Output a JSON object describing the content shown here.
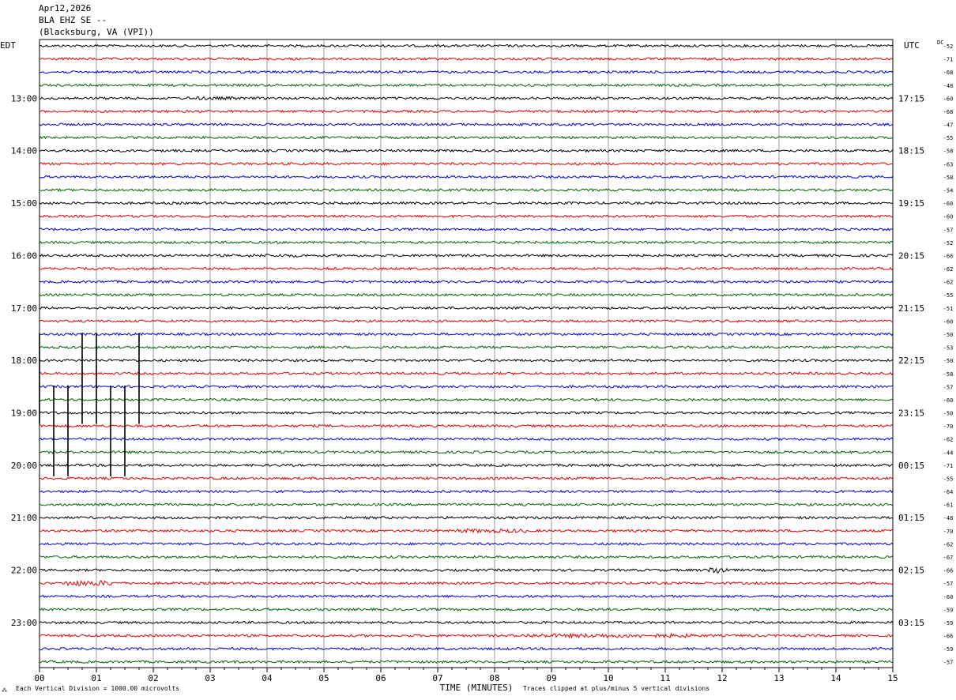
{
  "header": {
    "date": "Apr12,2026",
    "station": "BLA EHZ SE --",
    "location": "(Blacksburg, VA (VPI))"
  },
  "left_timezone": "EDT",
  "right_timezone": "UTC",
  "dc_label": "DC",
  "footer": {
    "xlabel": "TIME (MINUTES)",
    "scale_note": "Each Vertical Division = 1000.00 microvolts",
    "clip_note": "Traces clipped at plus/minus 5 vertical divisions",
    "corner_mark": "⁂"
  },
  "colors": {
    "trace_cycle": [
      "#000000",
      "#e00000",
      "#0000d0",
      "#006400"
    ],
    "grid": "#999999"
  },
  "chart_data": {
    "type": "line",
    "subtype": "helicorder",
    "minutes_per_line": 15,
    "x_ticks": [
      "00",
      "01",
      "02",
      "03",
      "04",
      "05",
      "06",
      "07",
      "08",
      "09",
      "10",
      "11",
      "12",
      "13",
      "14",
      "15"
    ],
    "left_hour_labels": [
      "13:00",
      "14:00",
      "15:00",
      "16:00",
      "17:00",
      "18:00",
      "19:00",
      "20:00",
      "21:00",
      "22:00",
      "23:00"
    ],
    "right_hour_labels": [
      "17:15",
      "18:15",
      "19:15",
      "20:15",
      "21:15",
      "22:15",
      "23:15",
      "00:15",
      "01:15",
      "02:15",
      "03:15"
    ],
    "hour_label_first_row": 4,
    "dc_offsets": [
      -52,
      -71,
      -68,
      -48,
      -60,
      -68,
      -47,
      -55,
      -58,
      -63,
      -58,
      -54,
      -60,
      -60,
      -57,
      -52,
      -66,
      -62,
      -62,
      -55,
      -51,
      -60,
      -50,
      -53,
      -50,
      -58,
      -57,
      -60,
      -50,
      -70,
      -62,
      -44,
      -71,
      -55,
      -64,
      -61,
      -48,
      -70,
      -62,
      -67,
      -66,
      -57,
      -60,
      -59,
      -59,
      -66,
      -59,
      -57
    ],
    "row_count": 48,
    "noise_level": 3,
    "events": [
      {
        "row": 4,
        "start_min": 2.6,
        "end_min": 3.5,
        "amp": 4
      },
      {
        "row": 16,
        "start_min": 3.6,
        "end_min": 4.6,
        "amp": 4
      },
      {
        "row": 37,
        "start_min": 7.3,
        "end_min": 8.6,
        "amp": 5
      },
      {
        "row": 40,
        "start_min": 11.75,
        "end_min": 12.1,
        "amp": 9
      },
      {
        "row": 41,
        "start_min": 0.45,
        "end_min": 1.25,
        "amp": 7
      },
      {
        "row": 45,
        "start_min": 8.5,
        "end_min": 11.5,
        "amp": 5
      }
    ],
    "clipped_spikes": [
      {
        "row": 23,
        "minute": 0.0,
        "span_rows": 6
      },
      {
        "row": 23,
        "minute": 0.75,
        "span_rows": 6
      },
      {
        "row": 23,
        "minute": 1.0,
        "span_rows": 6
      },
      {
        "row": 23,
        "minute": 1.75,
        "span_rows": 6
      },
      {
        "row": 27,
        "minute": 0.25,
        "span_rows": 6
      },
      {
        "row": 27,
        "minute": 0.5,
        "span_rows": 6
      },
      {
        "row": 27,
        "minute": 1.25,
        "span_rows": 6
      },
      {
        "row": 27,
        "minute": 1.5,
        "span_rows": 6
      }
    ]
  }
}
